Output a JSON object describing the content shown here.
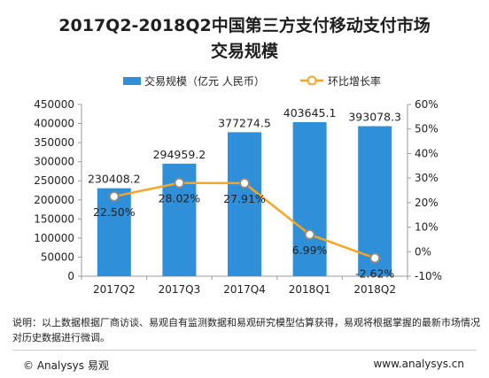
{
  "chart_data": {
    "type": "bar",
    "title": "2017Q2-2018Q2中国第三方支付移动支付市场",
    "subtitle": "交易规模",
    "categories": [
      "2017Q2",
      "2017Q3",
      "2017Q4",
      "2018Q1",
      "2018Q2"
    ],
    "series": [
      {
        "name": "交易规模（亿元 人民币）",
        "type": "bar",
        "axis": "left",
        "values": [
          230408.2,
          294959.2,
          377274.5,
          403645.1,
          393078.3
        ],
        "labels": [
          "230408.2",
          "294959.2",
          "377274.5",
          "403645.1",
          "393078.3"
        ],
        "color": "#2f8fd8"
      },
      {
        "name": "环比增长率",
        "type": "line",
        "axis": "right",
        "values": [
          22.5,
          28.02,
          27.91,
          6.99,
          -2.62
        ],
        "labels": [
          "22.50%",
          "28.02%",
          "27.91%",
          "6.99%",
          "-2.62%"
        ],
        "color": "#f5a623"
      }
    ],
    "y_left": {
      "range": [
        0,
        450000
      ],
      "ticks": [
        0,
        50000,
        100000,
        150000,
        200000,
        250000,
        300000,
        350000,
        400000,
        450000
      ],
      "tick_labels": [
        "0",
        "50000",
        "100000",
        "150000",
        "200000",
        "250000",
        "300000",
        "350000",
        "400000",
        "450000"
      ]
    },
    "y_right": {
      "range": [
        -10,
        60
      ],
      "ticks": [
        -10,
        0,
        10,
        20,
        30,
        40,
        50,
        60
      ],
      "tick_labels": [
        "-10%",
        "0%",
        "10%",
        "20%",
        "30%",
        "40%",
        "50%",
        "60%"
      ]
    },
    "grid": false,
    "legend_position": "top"
  },
  "note": "说明：以上数据根据厂商访谈、易观自有监测数据和易观研究模型估算获得，易观将根据掌握的最新市场情况对历史数据进行微调。",
  "footer": {
    "left": "© Analysys 易观",
    "right": "www.analysys.cn"
  }
}
